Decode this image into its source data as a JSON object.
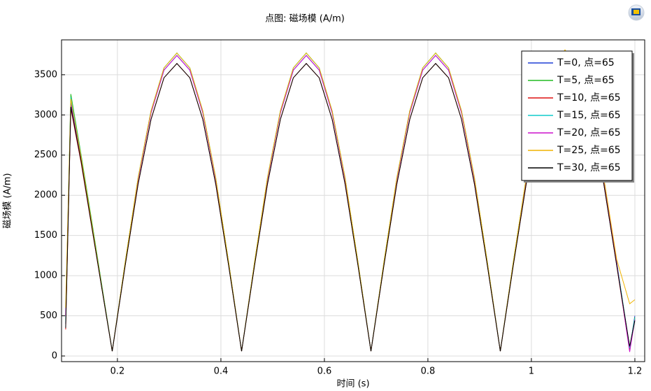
{
  "chart_data": {
    "type": "line",
    "title": "点图: 磁场模 (A/m)",
    "xlabel": "时间 (s)",
    "ylabel": "磁场模 (A/m)",
    "x": [
      0.1,
      0.11,
      0.13,
      0.15,
      0.17,
      0.19,
      0.215,
      0.24,
      0.265,
      0.29,
      0.315,
      0.34,
      0.365,
      0.39,
      0.415,
      0.44,
      0.465,
      0.49,
      0.515,
      0.54,
      0.565,
      0.59,
      0.615,
      0.64,
      0.665,
      0.69,
      0.715,
      0.74,
      0.765,
      0.79,
      0.815,
      0.84,
      0.865,
      0.89,
      0.915,
      0.94,
      0.965,
      0.99,
      1.015,
      1.04,
      1.065,
      1.09,
      1.115,
      1.14,
      1.165,
      1.19,
      1.2
    ],
    "series": [
      {
        "name": "T=0, 点=65",
        "color": "#1f3fd6",
        "values": [
          400,
          3150,
          2450,
          1650,
          850,
          60,
          1156,
          2199,
          3026,
          3557,
          3740,
          3557,
          3026,
          2199,
          1156,
          60,
          1156,
          2199,
          3026,
          3557,
          3740,
          3557,
          3026,
          2199,
          1156,
          60,
          1156,
          2199,
          3026,
          3557,
          3740,
          3557,
          3026,
          2199,
          1156,
          60,
          1156,
          2199,
          3026,
          3557,
          3740,
          3557,
          3026,
          2199,
          1156,
          80,
          500
        ]
      },
      {
        "name": "T=5, 点=65",
        "color": "#22bb22",
        "values": [
          450,
          3260,
          2500,
          1700,
          880,
          60,
          1165,
          2217,
          3050,
          3585,
          3770,
          3585,
          3050,
          2217,
          1165,
          60,
          1165,
          2217,
          3050,
          3585,
          3770,
          3585,
          3050,
          2217,
          1165,
          60,
          1165,
          2217,
          3050,
          3585,
          3770,
          3585,
          3050,
          2217,
          1165,
          60,
          1165,
          2217,
          3050,
          3585,
          3770,
          3585,
          3050,
          2217,
          1165,
          90,
          480
        ]
      },
      {
        "name": "T=10, 点=65",
        "color": "#dd1111",
        "values": [
          330,
          3080,
          2400,
          1620,
          840,
          60,
          1125,
          2140,
          2945,
          3462,
          3640,
          3462,
          2945,
          2140,
          1125,
          60,
          1125,
          2140,
          2945,
          3462,
          3640,
          3462,
          2945,
          2140,
          1125,
          60,
          1125,
          2140,
          2945,
          3462,
          3640,
          3462,
          2945,
          2140,
          1125,
          60,
          1125,
          2140,
          2945,
          3462,
          3640,
          3462,
          2945,
          2140,
          1125,
          70,
          460
        ]
      },
      {
        "name": "T=15, 点=65",
        "color": "#11cccc",
        "values": [
          420,
          3220,
          2480,
          1680,
          870,
          60,
          1165,
          2217,
          3050,
          3585,
          3770,
          3585,
          3050,
          2217,
          1165,
          60,
          1165,
          2217,
          3050,
          3585,
          3770,
          3585,
          3050,
          2217,
          1165,
          60,
          1165,
          2217,
          3050,
          3585,
          3770,
          3585,
          3050,
          2217,
          1165,
          60,
          1165,
          2217,
          3050,
          3585,
          3770,
          3585,
          3050,
          2217,
          1165,
          100,
          470
        ]
      },
      {
        "name": "T=20, 点=65",
        "color": "#cc11cc",
        "values": [
          500,
          3120,
          2430,
          1640,
          850,
          60,
          1156,
          2199,
          3026,
          3557,
          3740,
          3557,
          3026,
          2199,
          1156,
          60,
          1156,
          2199,
          3026,
          3557,
          3740,
          3557,
          3026,
          2199,
          1156,
          60,
          1156,
          2199,
          3026,
          3557,
          3740,
          3557,
          3026,
          2199,
          1156,
          60,
          1156,
          2199,
          3026,
          3557,
          3740,
          3557,
          3026,
          2199,
          1156,
          50,
          450
        ]
      },
      {
        "name": "T=25, 点=65",
        "color": "#f0b400",
        "values": [
          600,
          3200,
          2470,
          1670,
          860,
          60,
          1165,
          2217,
          3050,
          3585,
          3770,
          3585,
          3050,
          2217,
          1165,
          60,
          1165,
          2217,
          3050,
          3585,
          3770,
          3585,
          3050,
          2217,
          1165,
          60,
          1165,
          2217,
          3050,
          3585,
          3770,
          3585,
          3050,
          2217,
          1165,
          60,
          1165,
          2217,
          3050,
          3585,
          3810,
          3585,
          3050,
          2217,
          1200,
          650,
          700
        ]
      },
      {
        "name": "T=30, 点=65",
        "color": "#000000",
        "values": [
          350,
          3100,
          2420,
          1630,
          840,
          60,
          1125,
          2140,
          2945,
          3462,
          3640,
          3462,
          2945,
          2140,
          1125,
          60,
          1125,
          2140,
          2945,
          3462,
          3640,
          3462,
          2945,
          2140,
          1125,
          60,
          1125,
          2140,
          2945,
          3462,
          3640,
          3462,
          2945,
          2140,
          1125,
          60,
          1125,
          2140,
          2945,
          3462,
          3640,
          3462,
          2945,
          2140,
          1125,
          120,
          440
        ]
      }
    ],
    "xlim": [
      0.092,
      1.219
    ],
    "ylim": [
      -70,
      3934
    ],
    "xticks": [
      0.2,
      0.4,
      0.6,
      0.8,
      1,
      1.2
    ],
    "yticks": [
      0,
      500,
      1000,
      1500,
      2000,
      2500,
      3000,
      3500
    ],
    "grid": true,
    "legend": "top-right"
  }
}
